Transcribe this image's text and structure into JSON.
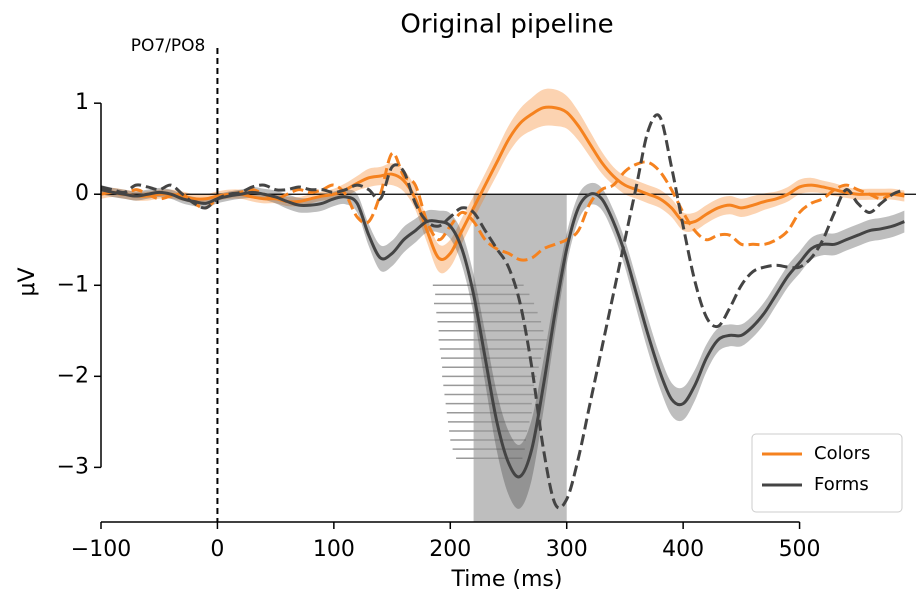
{
  "chart_data": {
    "type": "line",
    "title": "Original pipeline",
    "xlabel": "Time (ms)",
    "ylabel": "μV",
    "annotation": "PO7/PO8",
    "event_line": 0,
    "xlim": [
      -100,
      600
    ],
    "ylim": [
      -3.6,
      1.65
    ],
    "xticks": [
      {
        "value": -100,
        "label": "−100"
      },
      0,
      100,
      200,
      300,
      400,
      500
    ],
    "yticks": [
      {
        "value": -3,
        "label": "−3"
      },
      {
        "value": -2,
        "label": "−2"
      },
      {
        "value": -1,
        "label": "−1"
      },
      0,
      1
    ],
    "legend": "lower right",
    "shaded_region": {
      "x": [
        220,
        300
      ],
      "color": "#bbbbbb"
    },
    "x": [
      -100,
      -90,
      -80,
      -70,
      -60,
      -50,
      -40,
      -30,
      -20,
      -10,
      0,
      10,
      20,
      30,
      40,
      50,
      60,
      70,
      80,
      90,
      100,
      110,
      120,
      130,
      140,
      150,
      160,
      170,
      180,
      190,
      200,
      210,
      220,
      230,
      240,
      250,
      260,
      270,
      280,
      290,
      300,
      310,
      320,
      330,
      340,
      350,
      360,
      370,
      380,
      390,
      400,
      410,
      420,
      430,
      440,
      450,
      460,
      470,
      480,
      490,
      500,
      510,
      520,
      530,
      540,
      550,
      560,
      570,
      580,
      590
    ],
    "series": [
      {
        "name": "Colors",
        "color": "#f5821f",
        "style": "solid",
        "values": [
          0.0,
          0.02,
          0.0,
          -0.02,
          -0.02,
          0.0,
          0.0,
          -0.02,
          -0.05,
          -0.05,
          -0.02,
          0.0,
          0.0,
          -0.03,
          -0.05,
          -0.05,
          -0.08,
          -0.08,
          -0.05,
          -0.02,
          0.0,
          0.05,
          0.12,
          0.18,
          0.2,
          0.22,
          0.15,
          -0.05,
          -0.4,
          -0.7,
          -0.65,
          -0.4,
          -0.15,
          0.1,
          0.35,
          0.6,
          0.78,
          0.88,
          0.95,
          0.95,
          0.9,
          0.75,
          0.55,
          0.35,
          0.2,
          0.1,
          0.05,
          0.0,
          -0.05,
          -0.15,
          -0.3,
          -0.3,
          -0.22,
          -0.15,
          -0.12,
          -0.15,
          -0.12,
          -0.08,
          -0.05,
          0.0,
          0.08,
          0.1,
          0.08,
          0.05,
          0.02,
          0.0,
          0.0,
          0.0,
          0.0,
          -0.02
        ],
        "error": [
          0.05,
          0.05,
          0.05,
          0.05,
          0.05,
          0.05,
          0.05,
          0.05,
          0.05,
          0.05,
          0.05,
          0.05,
          0.05,
          0.05,
          0.05,
          0.05,
          0.05,
          0.05,
          0.05,
          0.05,
          0.06,
          0.07,
          0.08,
          0.1,
          0.1,
          0.12,
          0.12,
          0.12,
          0.13,
          0.15,
          0.15,
          0.14,
          0.13,
          0.13,
          0.14,
          0.15,
          0.16,
          0.18,
          0.2,
          0.2,
          0.18,
          0.16,
          0.14,
          0.12,
          0.1,
          0.1,
          0.1,
          0.1,
          0.1,
          0.1,
          0.1,
          0.1,
          0.1,
          0.1,
          0.1,
          0.1,
          0.1,
          0.09,
          0.08,
          0.08,
          0.08,
          0.08,
          0.07,
          0.07,
          0.06,
          0.06,
          0.06,
          0.06,
          0.06,
          0.06
        ]
      },
      {
        "color": "#f5821f",
        "style": "dashed",
        "values": [
          0.05,
          0.02,
          0.0,
          0.05,
          0.0,
          -0.05,
          -0.02,
          0.0,
          -0.1,
          -0.15,
          -0.05,
          0.0,
          0.02,
          0.05,
          0.0,
          -0.05,
          0.0,
          0.05,
          0.02,
          0.05,
          0.1,
          0.0,
          -0.25,
          -0.3,
          0.0,
          0.45,
          0.2,
          0.1,
          -0.3,
          -0.5,
          -0.35,
          -0.2,
          -0.3,
          -0.5,
          -0.6,
          -0.65,
          -0.72,
          -0.7,
          -0.6,
          -0.55,
          -0.5,
          -0.4,
          -0.1,
          0.05,
          0.1,
          0.25,
          0.33,
          0.35,
          0.25,
          0.05,
          -0.2,
          -0.4,
          -0.5,
          -0.45,
          -0.45,
          -0.55,
          -0.55,
          -0.55,
          -0.5,
          -0.4,
          -0.2,
          -0.1,
          -0.05,
          0.05,
          0.1,
          0.05,
          0.0,
          -0.05,
          0.0,
          0.0
        ]
      },
      {
        "name": "Forms",
        "color": "#444444",
        "style": "solid",
        "values": [
          0.05,
          0.02,
          0.0,
          -0.02,
          0.0,
          0.02,
          0.0,
          -0.05,
          -0.08,
          -0.1,
          -0.05,
          -0.02,
          0.0,
          0.02,
          0.0,
          -0.03,
          -0.08,
          -0.12,
          -0.12,
          -0.1,
          -0.05,
          -0.03,
          -0.1,
          -0.45,
          -0.7,
          -0.65,
          -0.5,
          -0.4,
          -0.3,
          -0.3,
          -0.35,
          -0.6,
          -1.1,
          -1.8,
          -2.5,
          -2.95,
          -3.1,
          -2.8,
          -2.1,
          -1.3,
          -0.6,
          -0.15,
          0.0,
          -0.05,
          -0.3,
          -0.65,
          -1.1,
          -1.55,
          -1.95,
          -2.25,
          -2.3,
          -2.1,
          -1.8,
          -1.6,
          -1.55,
          -1.55,
          -1.45,
          -1.3,
          -1.1,
          -0.9,
          -0.75,
          -0.6,
          -0.55,
          -0.55,
          -0.5,
          -0.45,
          -0.4,
          -0.38,
          -0.35,
          -0.3
        ],
        "error": [
          0.05,
          0.05,
          0.05,
          0.05,
          0.05,
          0.05,
          0.05,
          0.05,
          0.05,
          0.05,
          0.05,
          0.05,
          0.05,
          0.06,
          0.06,
          0.07,
          0.08,
          0.08,
          0.08,
          0.08,
          0.08,
          0.08,
          0.1,
          0.12,
          0.14,
          0.14,
          0.14,
          0.13,
          0.12,
          0.12,
          0.14,
          0.18,
          0.22,
          0.28,
          0.32,
          0.35,
          0.35,
          0.33,
          0.28,
          0.22,
          0.17,
          0.14,
          0.12,
          0.12,
          0.13,
          0.15,
          0.17,
          0.18,
          0.18,
          0.18,
          0.18,
          0.17,
          0.15,
          0.13,
          0.12,
          0.12,
          0.12,
          0.12,
          0.12,
          0.12,
          0.12,
          0.12,
          0.12,
          0.12,
          0.12,
          0.12,
          0.12,
          0.12,
          0.12,
          0.12
        ]
      },
      {
        "color": "#444444",
        "style": "dashed",
        "values": [
          0.08,
          0.05,
          0.02,
          0.1,
          0.08,
          0.05,
          0.1,
          0.0,
          -0.1,
          -0.15,
          -0.05,
          0.0,
          0.02,
          0.08,
          0.1,
          0.05,
          0.05,
          0.08,
          0.05,
          0.05,
          0.02,
          0.05,
          0.1,
          0.05,
          -0.05,
          0.3,
          0.25,
          -0.1,
          -0.3,
          -0.35,
          -0.25,
          -0.15,
          -0.2,
          -0.4,
          -0.6,
          -0.8,
          -1.2,
          -1.9,
          -2.8,
          -3.4,
          -3.35,
          -2.9,
          -2.3,
          -1.7,
          -1.1,
          -0.5,
          0.1,
          0.7,
          0.85,
          0.3,
          -0.35,
          -0.95,
          -1.35,
          -1.45,
          -1.25,
          -1.0,
          -0.85,
          -0.8,
          -0.78,
          -0.8,
          -0.8,
          -0.7,
          -0.5,
          -0.2,
          0.05,
          -0.1,
          -0.2,
          -0.1,
          0.0,
          0.05
        ]
      }
    ],
    "segments_color": "#999999",
    "segments": [
      [
        -1.0,
        185,
        263
      ],
      [
        -1.1,
        187,
        268
      ],
      [
        -1.2,
        186,
        272
      ],
      [
        -1.3,
        188,
        275
      ],
      [
        -1.4,
        189,
        278
      ],
      [
        -1.5,
        190,
        280
      ],
      [
        -1.6,
        190,
        283
      ],
      [
        -1.7,
        191,
        280
      ],
      [
        -1.8,
        192,
        278
      ],
      [
        -1.9,
        193,
        276
      ],
      [
        -2.0,
        193,
        274
      ],
      [
        -2.1,
        194,
        272
      ],
      [
        -2.2,
        195,
        272
      ],
      [
        -2.3,
        196,
        270
      ],
      [
        -2.4,
        197,
        270
      ],
      [
        -2.5,
        198,
        268
      ],
      [
        -2.6,
        199,
        266
      ],
      [
        -2.7,
        200,
        265
      ],
      [
        -2.8,
        202,
        264
      ],
      [
        -2.9,
        205,
        262
      ]
    ]
  }
}
